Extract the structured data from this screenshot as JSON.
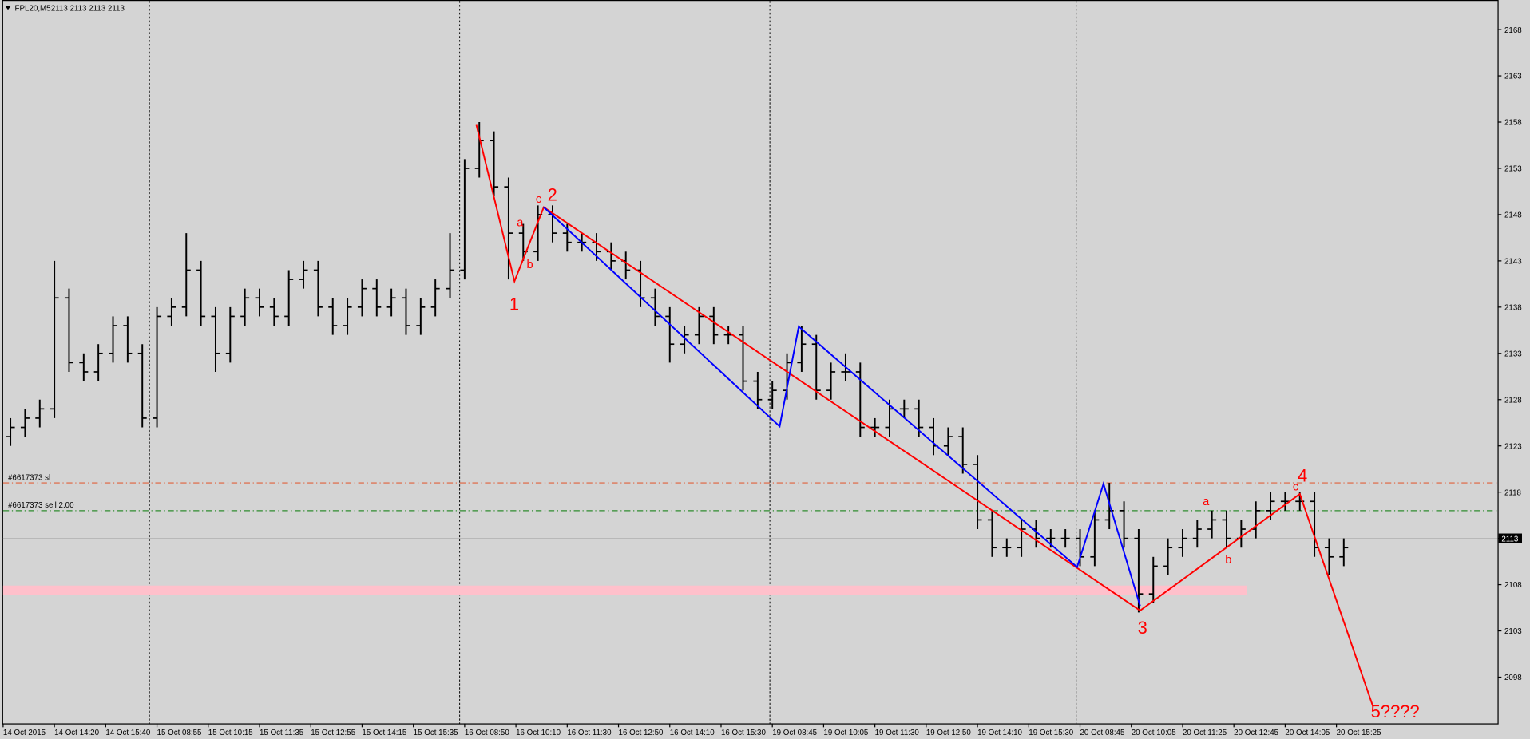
{
  "chart_data": {
    "type": "ohlc",
    "title": "FPL20,M5",
    "quote": "2113 2113 2113 2113",
    "open": [
      2124,
      2125,
      2126,
      2127,
      2139,
      2132,
      2131,
      2133,
      2136,
      2133,
      2126,
      2137,
      2138,
      2142,
      2137,
      2133,
      2137,
      2139,
      2138,
      2137,
      2141,
      2142,
      2138,
      2136,
      2138,
      2140,
      2138,
      2139,
      2136,
      2138,
      2140,
      2142,
      2153,
      2156,
      2151,
      2146,
      2144,
      2148,
      2146,
      2145,
      2145,
      2144,
      2143,
      2142,
      2139,
      2137,
      2134,
      2135,
      2137,
      2135,
      2135,
      2130,
      2128,
      2129,
      2132,
      2134,
      2129,
      2131,
      2131,
      2125,
      2125,
      2127,
      2127,
      2125,
      2123,
      2124,
      2121,
      2115,
      2112,
      2112,
      2114,
      2113,
      2113,
      2113,
      2111,
      2115,
      2116,
      2113,
      2107,
      2110,
      2112,
      2113,
      2114,
      2115,
      2113,
      2114,
      2116,
      2117,
      2117,
      2117,
      2112,
      2111
    ],
    "high": [
      2126,
      2127,
      2128,
      2143,
      2140,
      2133,
      2134,
      2137,
      2137,
      2134,
      2138,
      2139,
      2146,
      2143,
      2138,
      2138,
      2140,
      2140,
      2139,
      2142,
      2143,
      2143,
      2139,
      2139,
      2141,
      2141,
      2140,
      2140,
      2139,
      2141,
      2146,
      2154,
      2158,
      2157,
      2152,
      2147,
      2149,
      2149,
      2147,
      2146,
      2146,
      2145,
      2144,
      2143,
      2140,
      2138,
      2136,
      2138,
      2138,
      2136,
      2136,
      2131,
      2130,
      2133,
      2136,
      2135,
      2132,
      2133,
      2132,
      2126,
      2128,
      2128,
      2128,
      2126,
      2125,
      2125,
      2122,
      2116,
      2113,
      2115,
      2115,
      2114,
      2114,
      2114,
      2116,
      2119,
      2117,
      2114,
      2111,
      2113,
      2114,
      2115,
      2116,
      2116,
      2115,
      2117,
      2118,
      2118,
      2118,
      2118,
      2113,
      2113
    ],
    "low": [
      2123,
      2124,
      2125,
      2126,
      2131,
      2130,
      2130,
      2132,
      2132,
      2125,
      2125,
      2136,
      2137,
      2136,
      2131,
      2132,
      2136,
      2137,
      2136,
      2136,
      2140,
      2137,
      2135,
      2135,
      2137,
      2137,
      2137,
      2135,
      2135,
      2137,
      2139,
      2141,
      2152,
      2150,
      2141,
      2143,
      2143,
      2145,
      2144,
      2144,
      2143,
      2142,
      2141,
      2138,
      2136,
      2132,
      2133,
      2134,
      2134,
      2134,
      2129,
      2127,
      2127,
      2128,
      2131,
      2128,
      2128,
      2130,
      2124,
      2124,
      2124,
      2126,
      2124,
      2122,
      2122,
      2120,
      2114,
      2111,
      2111,
      2111,
      2112,
      2112,
      2112,
      2110,
      2110,
      2114,
      2112,
      2105,
      2106,
      2109,
      2111,
      2112,
      2113,
      2112,
      2112,
      2113,
      2115,
      2116,
      2116,
      2111,
      2109,
      2110
    ],
    "close": [
      2125,
      2126,
      2127,
      2139,
      2132,
      2131,
      2133,
      2136,
      2133,
      2126,
      2137,
      2138,
      2142,
      2137,
      2133,
      2137,
      2139,
      2138,
      2137,
      2141,
      2142,
      2138,
      2136,
      2138,
      2140,
      2138,
      2139,
      2136,
      2138,
      2140,
      2142,
      2153,
      2156,
      2151,
      2146,
      2144,
      2148,
      2146,
      2145,
      2145,
      2144,
      2143,
      2142,
      2139,
      2137,
      2134,
      2135,
      2137,
      2135,
      2135,
      2130,
      2128,
      2129,
      2132,
      2134,
      2129,
      2131,
      2131,
      2125,
      2125,
      2127,
      2127,
      2125,
      2123,
      2124,
      2121,
      2115,
      2112,
      2112,
      2114,
      2113,
      2113,
      2113,
      2111,
      2115,
      2116,
      2113,
      2107,
      2110,
      2112,
      2113,
      2114,
      2115,
      2113,
      2114,
      2116,
      2117,
      2117,
      2117,
      2112,
      2111,
      2112
    ],
    "color": "#000000",
    "xlim": [
      0,
      102
    ],
    "xticks": [
      {
        "value": 0,
        "label": "14 Oct 2015"
      },
      {
        "value": 3.5,
        "label": "14 Oct 14:20"
      },
      {
        "value": 7,
        "label": "14 Oct 15:40"
      },
      {
        "value": 10.5,
        "label": "15 Oct 08:55"
      },
      {
        "value": 14,
        "label": "15 Oct 10:15"
      },
      {
        "value": 17.5,
        "label": "15 Oct 11:35"
      },
      {
        "value": 21,
        "label": "15 Oct 12:55"
      },
      {
        "value": 24.5,
        "label": "15 Oct 14:15"
      },
      {
        "value": 28,
        "label": "15 Oct 15:35"
      },
      {
        "value": 31.5,
        "label": "16 Oct 08:50"
      },
      {
        "value": 35,
        "label": "16 Oct 10:10"
      },
      {
        "value": 38.5,
        "label": "16 Oct 11:30"
      },
      {
        "value": 42,
        "label": "16 Oct 12:50"
      },
      {
        "value": 45.5,
        "label": "16 Oct 14:10"
      },
      {
        "value": 49,
        "label": "16 Oct 15:30"
      },
      {
        "value": 52.5,
        "label": "19 Oct 08:45"
      },
      {
        "value": 56,
        "label": "19 Oct 10:05"
      },
      {
        "value": 59.5,
        "label": "19 Oct 11:30"
      },
      {
        "value": 63,
        "label": "19 Oct 12:50"
      },
      {
        "value": 66.5,
        "label": "19 Oct 14:10"
      },
      {
        "value": 70,
        "label": "19 Oct 15:30"
      },
      {
        "value": 73.5,
        "label": "20 Oct 08:45"
      },
      {
        "value": 77,
        "label": "20 Oct 10:05"
      },
      {
        "value": 80.5,
        "label": "20 Oct 11:25"
      },
      {
        "value": 84,
        "label": "20 Oct 12:45"
      },
      {
        "value": 87.5,
        "label": "20 Oct 14:05"
      },
      {
        "value": 91,
        "label": "20 Oct 15:25"
      }
    ],
    "ylim": [
      2093,
      2171.2
    ],
    "yticks": [
      2098,
      2103,
      2108,
      2113,
      2118,
      2123,
      2128,
      2133,
      2138,
      2143,
      2148,
      2153,
      2158,
      2163,
      2168
    ],
    "levels": [
      {
        "label": "#6617373 sl",
        "value": 2119,
        "color": "#e0603a"
      },
      {
        "label": "#6617373 sell 2.00",
        "value": 2116,
        "color": "#2e8b2e"
      }
    ],
    "current_price": 2113,
    "zone": {
      "from": 2106.9,
      "to": 2107.9,
      "color": "#ffc0cb"
    },
    "waves": [
      {
        "color": "#ff0000",
        "x": [
          32.3,
          34.9,
          36.9,
          77.6,
          88.5,
          93.5
        ],
        "y": [
          2157.7,
          2140.8,
          2148.8,
          2105.2,
          2117.8,
          2094.8
        ]
      },
      {
        "color": "#0000ff",
        "x": [
          36.9,
          53,
          54.3,
          73.3,
          75.1,
          77.6
        ],
        "y": [
          2148.8,
          2125.1,
          2135.9,
          2109.9,
          2118.9,
          2105.7
        ]
      }
    ],
    "wave_labels": [
      "1",
      "2",
      "3",
      "4",
      "5????"
    ],
    "sub_labels": [
      "a",
      "b",
      "c",
      "a",
      "b",
      "c"
    ]
  }
}
